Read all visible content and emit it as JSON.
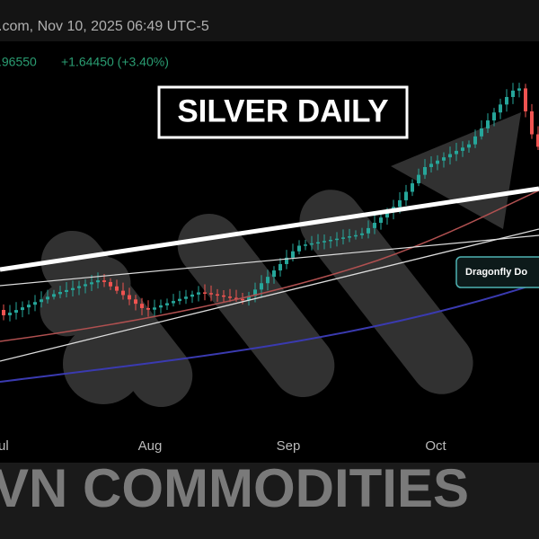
{
  "header": {
    "source_line": ".com, Nov 10, 2025 06:49 UTC-5",
    "price": ".96550",
    "change": "+1.64450 (+3.40%)"
  },
  "title": "SILVER DAILY",
  "annotation": "Dragonfly Do",
  "time_axis": [
    "ul",
    "Aug",
    "Sep",
    "Oct"
  ],
  "watermark": "VN COMMODITIES"
}
